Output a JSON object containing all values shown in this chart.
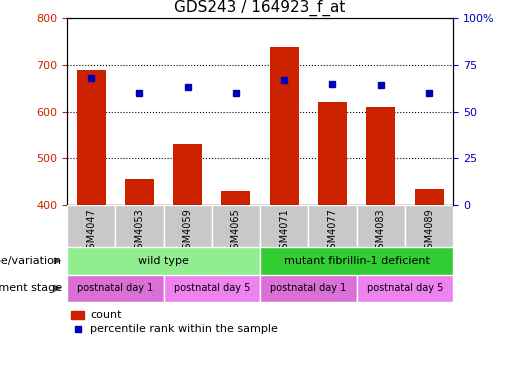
{
  "title": "GDS243 / 164923_f_at",
  "categories": [
    "GSM4047",
    "GSM4053",
    "GSM4059",
    "GSM4065",
    "GSM4071",
    "GSM4077",
    "GSM4083",
    "GSM4089"
  ],
  "bar_values": [
    690,
    455,
    530,
    430,
    738,
    620,
    610,
    435
  ],
  "percentile_values": [
    68,
    60,
    63,
    60,
    67,
    65,
    64,
    60
  ],
  "ylim_left": [
    400,
    800
  ],
  "ylim_right": [
    0,
    100
  ],
  "yticks_left": [
    400,
    500,
    600,
    700,
    800
  ],
  "yticks_right": [
    0,
    25,
    50,
    75,
    100
  ],
  "bar_color": "#cc2200",
  "dot_color": "#0000bb",
  "grid_color": "#000000",
  "title_fontsize": 11,
  "tick_color_left": "#cc2200",
  "tick_color_right": "#0000bb",
  "genotype_groups": [
    {
      "label": "wild type",
      "start": 0,
      "end": 4,
      "color": "#90ee90"
    },
    {
      "label": "mutant fibrillin-1 deficient",
      "start": 4,
      "end": 8,
      "color": "#32cd32"
    }
  ],
  "development_groups": [
    {
      "label": "postnatal day 1",
      "start": 0,
      "end": 2,
      "color": "#da70d6"
    },
    {
      "label": "postnatal day 5",
      "start": 2,
      "end": 4,
      "color": "#ee82ee"
    },
    {
      "label": "postnatal day 1",
      "start": 4,
      "end": 6,
      "color": "#da70d6"
    },
    {
      "label": "postnatal day 5",
      "start": 6,
      "end": 8,
      "color": "#ee82ee"
    }
  ],
  "legend_items": [
    {
      "label": "count",
      "color": "#cc2200"
    },
    {
      "label": "percentile rank within the sample",
      "color": "#0000bb"
    }
  ],
  "genotype_row_label": "genotype/variation",
  "development_row_label": "development stage",
  "xticklabel_bg": "#c8c8c8"
}
